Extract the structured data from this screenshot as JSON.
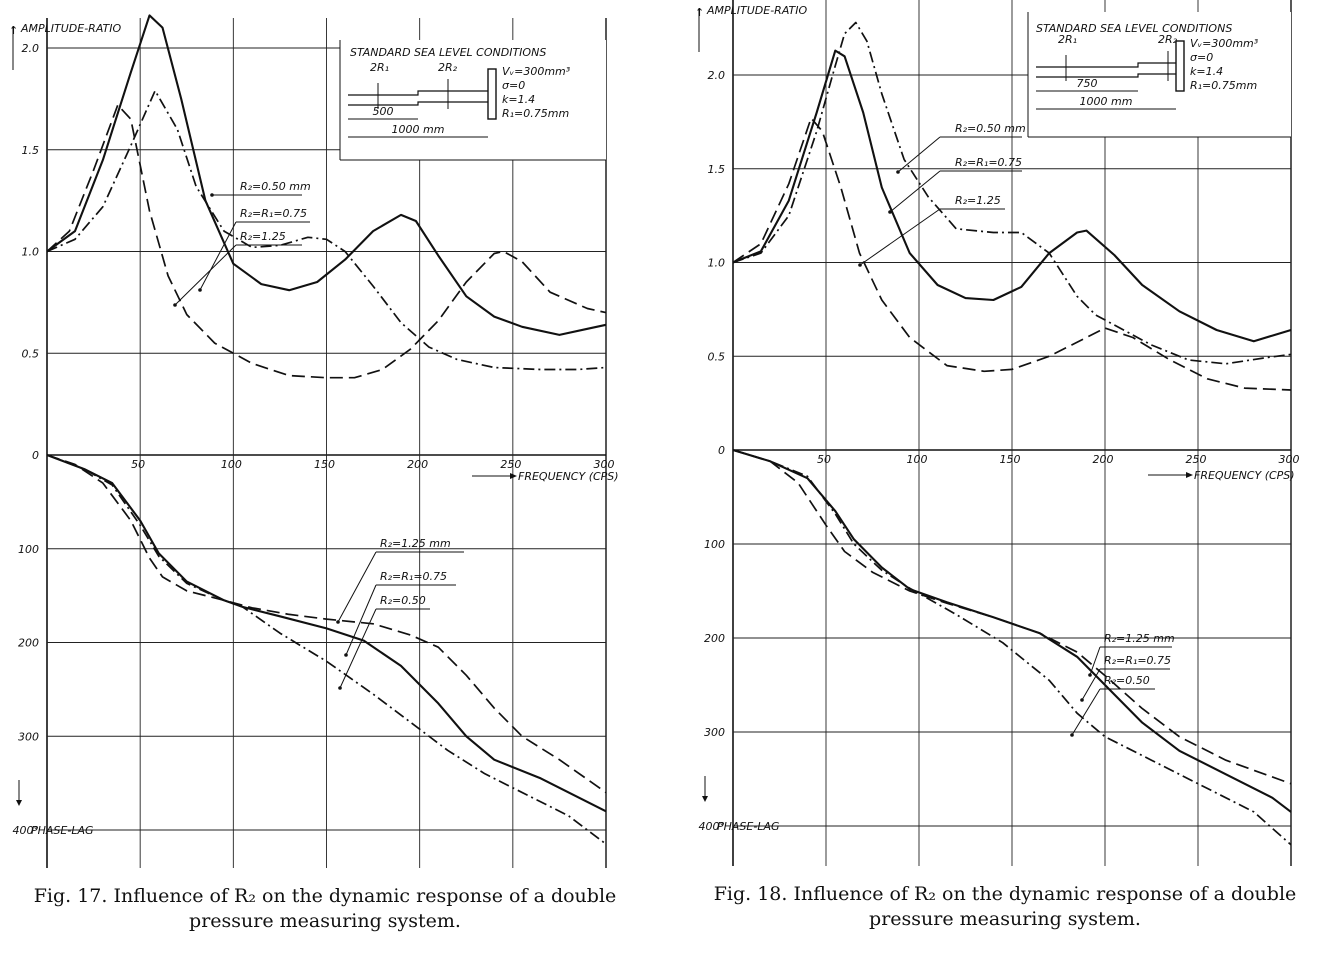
{
  "figures": [
    {
      "caption_line1": "Fig. 17. Influence of R₂ on the dynamic response of a double",
      "caption_line2": "pressure measuring system.",
      "conditions_title": "STANDARD SEA LEVEL CONDITIONS",
      "schematic": {
        "r1_label": "2R₁",
        "r2_label": "2R₂",
        "len1_label": "500",
        "len_total_label": "1000 mm",
        "volume": "Vᵥ=300mm³",
        "sigma": "σ=0",
        "k": "k=1.4",
        "r1": "R₁=0.75mm"
      },
      "amp_annotations": [
        "R₂=0.50 mm",
        "R₂=R₁=0.75",
        "R₂=1.25"
      ],
      "phase_annotations": [
        "R₂=1.25 mm",
        "R₂=R₁=0.75",
        "R₂=0.50"
      ]
    },
    {
      "caption_line1": "Fig. 18. Influence of R₂ on the dynamic response of a double",
      "caption_line2": "pressure measuring system.",
      "conditions_title": "STANDARD SEA LEVEL CONDITIONS",
      "schematic": {
        "r1_label": "2R₁",
        "r2_label": "2R₂",
        "len1_label": "750",
        "len_total_label": "1000 mm",
        "volume": "Vᵥ=300mm³",
        "sigma": "σ=0",
        "k": "k=1.4",
        "r1": "R₁=0.75mm"
      },
      "amp_annotations": [
        "R₂=0.50 mm",
        "R₂=R₁=0.75",
        "R₂=1.25"
      ],
      "phase_annotations": [
        "R₂=1.25 mm",
        "R₂=R₁=0.75",
        "R₂=0.50"
      ]
    }
  ],
  "chart_data": [
    {
      "type": "line",
      "title": "Fig. 17",
      "xlabel": "FREQUENCY (CPS)",
      "ylabel_top": "AMPLITUDE-RATIO",
      "ylabel_bottom": "PHASE-LAG",
      "xlim": [
        0,
        300
      ],
      "x_ticks": [
        "50",
        "100",
        "150",
        "200",
        "250",
        "300"
      ],
      "amp_ylim": [
        0,
        2.0
      ],
      "amp_ticks": [
        "0",
        "0.5",
        "1.0",
        "1.5",
        "2.0"
      ],
      "phase_ylim": [
        0,
        400
      ],
      "phase_ticks": [
        "0",
        "100",
        "200",
        "300",
        "400°"
      ],
      "amplitude_series": [
        {
          "name": "R₂=0.50 mm",
          "style": "dash-dot",
          "points": [
            [
              0,
              1.0
            ],
            [
              15,
              1.06
            ],
            [
              30,
              1.22
            ],
            [
              45,
              1.52
            ],
            [
              58,
              1.79
            ],
            [
              70,
              1.6
            ],
            [
              80,
              1.32
            ],
            [
              95,
              1.1
            ],
            [
              110,
              1.02
            ],
            [
              125,
              1.03
            ],
            [
              140,
              1.07
            ],
            [
              150,
              1.06
            ],
            [
              160,
              1.0
            ],
            [
              175,
              0.83
            ],
            [
              190,
              0.65
            ],
            [
              205,
              0.53
            ],
            [
              220,
              0.47
            ],
            [
              240,
              0.43
            ],
            [
              265,
              0.42
            ],
            [
              285,
              0.42
            ],
            [
              300,
              0.43
            ]
          ]
        },
        {
          "name": "R₂=R₁=0.75",
          "style": "solid",
          "points": [
            [
              0,
              1.0
            ],
            [
              15,
              1.1
            ],
            [
              30,
              1.45
            ],
            [
              45,
              1.88
            ],
            [
              55,
              2.16
            ],
            [
              62,
              2.1
            ],
            [
              72,
              1.75
            ],
            [
              85,
              1.25
            ],
            [
              100,
              0.94
            ],
            [
              115,
              0.84
            ],
            [
              130,
              0.81
            ],
            [
              145,
              0.85
            ],
            [
              160,
              0.96
            ],
            [
              175,
              1.1
            ],
            [
              190,
              1.18
            ],
            [
              198,
              1.15
            ],
            [
              210,
              0.98
            ],
            [
              225,
              0.78
            ],
            [
              240,
              0.68
            ],
            [
              255,
              0.63
            ],
            [
              275,
              0.59
            ],
            [
              290,
              0.62
            ],
            [
              300,
              0.64
            ]
          ]
        },
        {
          "name": "R₂=1.25",
          "style": "dashed",
          "points": [
            [
              0,
              1.0
            ],
            [
              12,
              1.1
            ],
            [
              25,
              1.4
            ],
            [
              38,
              1.72
            ],
            [
              45,
              1.65
            ],
            [
              55,
              1.2
            ],
            [
              65,
              0.88
            ],
            [
              75,
              0.69
            ],
            [
              90,
              0.55
            ],
            [
              110,
              0.45
            ],
            [
              130,
              0.39
            ],
            [
              150,
              0.38
            ],
            [
              165,
              0.38
            ],
            [
              180,
              0.42
            ],
            [
              195,
              0.52
            ],
            [
              210,
              0.66
            ],
            [
              225,
              0.85
            ],
            [
              240,
              0.99
            ],
            [
              245,
              1.0
            ],
            [
              255,
              0.95
            ],
            [
              270,
              0.8
            ],
            [
              290,
              0.72
            ],
            [
              300,
              0.7
            ]
          ]
        }
      ],
      "phase_series": [
        {
          "name": "R₂=1.25 mm",
          "style": "dashed",
          "points": [
            [
              0,
              0
            ],
            [
              15,
              10
            ],
            [
              30,
              30
            ],
            [
              45,
              70
            ],
            [
              55,
              110
            ],
            [
              62,
              130
            ],
            [
              75,
              145
            ],
            [
              95,
              155
            ],
            [
              110,
              163
            ],
            [
              130,
              170
            ],
            [
              150,
              175
            ],
            [
              175,
              180
            ],
            [
              195,
              192
            ],
            [
              210,
              205
            ],
            [
              225,
              235
            ],
            [
              240,
              270
            ],
            [
              255,
              300
            ],
            [
              275,
              325
            ],
            [
              300,
              360
            ]
          ]
        },
        {
          "name": "R₂=R₁=0.75",
          "style": "solid",
          "points": [
            [
              0,
              0
            ],
            [
              20,
              15
            ],
            [
              35,
              30
            ],
            [
              50,
              70
            ],
            [
              60,
              105
            ],
            [
              75,
              135
            ],
            [
              95,
              155
            ],
            [
              105,
              162
            ],
            [
              125,
              172
            ],
            [
              150,
              185
            ],
            [
              170,
              198
            ],
            [
              190,
              225
            ],
            [
              210,
              265
            ],
            [
              225,
              300
            ],
            [
              240,
              325
            ],
            [
              265,
              345
            ],
            [
              300,
              380
            ]
          ]
        },
        {
          "name": "R₂=0.50",
          "style": "dash-dot",
          "points": [
            [
              0,
              0
            ],
            [
              20,
              15
            ],
            [
              35,
              32
            ],
            [
              50,
              75
            ],
            [
              60,
              108
            ],
            [
              75,
              137
            ],
            [
              95,
              155
            ],
            [
              105,
              162
            ],
            [
              125,
              190
            ],
            [
              150,
              220
            ],
            [
              175,
              255
            ],
            [
              195,
              285
            ],
            [
              215,
              315
            ],
            [
              235,
              340
            ],
            [
              260,
              365
            ],
            [
              280,
              385
            ],
            [
              300,
              415
            ]
          ]
        }
      ]
    },
    {
      "type": "line",
      "title": "Fig. 18",
      "xlabel": "FREQUENCY (CPS)",
      "ylabel_top": "AMPLITUDE-RATIO",
      "ylabel_bottom": "PHASE-LAG",
      "xlim": [
        0,
        300
      ],
      "x_ticks": [
        "50",
        "100",
        "150",
        "200",
        "250",
        "300"
      ],
      "amp_ylim": [
        0,
        2.0
      ],
      "amp_ticks": [
        "0",
        "0.5",
        "1.0",
        "1.5",
        "2.0"
      ],
      "phase_ylim": [
        0,
        400
      ],
      "phase_ticks": [
        "0",
        "100",
        "200",
        "300",
        "400°"
      ],
      "amplitude_series": [
        {
          "name": "R₂=0.50 mm",
          "style": "dash-dot",
          "points": [
            [
              0,
              1.0
            ],
            [
              15,
              1.05
            ],
            [
              30,
              1.25
            ],
            [
              45,
              1.7
            ],
            [
              55,
              2.05
            ],
            [
              60,
              2.22
            ],
            [
              66,
              2.28
            ],
            [
              72,
              2.18
            ],
            [
              80,
              1.9
            ],
            [
              92,
              1.55
            ],
            [
              105,
              1.35
            ],
            [
              120,
              1.18
            ],
            [
              140,
              1.16
            ],
            [
              155,
              1.16
            ],
            [
              170,
              1.05
            ],
            [
              185,
              0.82
            ],
            [
              195,
              0.72
            ],
            [
              210,
              0.64
            ],
            [
              225,
              0.56
            ],
            [
              245,
              0.48
            ],
            [
              265,
              0.46
            ],
            [
              285,
              0.49
            ],
            [
              300,
              0.51
            ]
          ]
        },
        {
          "name": "R₂=R₁=0.75",
          "style": "solid",
          "points": [
            [
              0,
              1.0
            ],
            [
              15,
              1.06
            ],
            [
              30,
              1.33
            ],
            [
              45,
              1.8
            ],
            [
              55,
              2.13
            ],
            [
              60,
              2.1
            ],
            [
              70,
              1.8
            ],
            [
              80,
              1.4
            ],
            [
              95,
              1.05
            ],
            [
              110,
              0.88
            ],
            [
              125,
              0.81
            ],
            [
              140,
              0.8
            ],
            [
              155,
              0.87
            ],
            [
              170,
              1.05
            ],
            [
              185,
              1.16
            ],
            [
              190,
              1.17
            ],
            [
              205,
              1.04
            ],
            [
              220,
              0.88
            ],
            [
              240,
              0.74
            ],
            [
              260,
              0.64
            ],
            [
              280,
              0.58
            ],
            [
              290,
              0.61
            ],
            [
              300,
              0.64
            ]
          ]
        },
        {
          "name": "R₂=1.25",
          "style": "dashed",
          "points": [
            [
              0,
              1.0
            ],
            [
              15,
              1.1
            ],
            [
              30,
              1.42
            ],
            [
              42,
              1.77
            ],
            [
              48,
              1.7
            ],
            [
              58,
              1.4
            ],
            [
              68,
              1.05
            ],
            [
              80,
              0.8
            ],
            [
              95,
              0.6
            ],
            [
              115,
              0.45
            ],
            [
              135,
              0.42
            ],
            [
              150,
              0.43
            ],
            [
              170,
              0.5
            ],
            [
              190,
              0.6
            ],
            [
              200,
              0.65
            ],
            [
              215,
              0.6
            ],
            [
              235,
              0.48
            ],
            [
              255,
              0.38
            ],
            [
              275,
              0.33
            ],
            [
              300,
              0.32
            ]
          ]
        }
      ],
      "phase_series": [
        {
          "name": "R₂=1.25 mm",
          "style": "dashed",
          "points": [
            [
              0,
              0
            ],
            [
              20,
              12
            ],
            [
              35,
              35
            ],
            [
              50,
              80
            ],
            [
              60,
              108
            ],
            [
              75,
              130
            ],
            [
              95,
              150
            ],
            [
              115,
              163
            ],
            [
              140,
              178
            ],
            [
              165,
              195
            ],
            [
              185,
              215
            ],
            [
              200,
              240
            ],
            [
              220,
              275
            ],
            [
              240,
              305
            ],
            [
              265,
              330
            ],
            [
              300,
              355
            ]
          ]
        },
        {
          "name": "R₂=R₁=0.75",
          "style": "solid",
          "points": [
            [
              0,
              0
            ],
            [
              20,
              12
            ],
            [
              40,
              30
            ],
            [
              55,
              65
            ],
            [
              65,
              95
            ],
            [
              80,
              125
            ],
            [
              95,
              148
            ],
            [
              115,
              162
            ],
            [
              140,
              178
            ],
            [
              165,
              195
            ],
            [
              185,
              220
            ],
            [
              200,
              250
            ],
            [
              220,
              290
            ],
            [
              240,
              320
            ],
            [
              265,
              345
            ],
            [
              290,
              370
            ],
            [
              300,
              385
            ]
          ]
        },
        {
          "name": "R₂=0.50",
          "style": "dash-dot",
          "points": [
            [
              0,
              0
            ],
            [
              20,
              12
            ],
            [
              40,
              28
            ],
            [
              55,
              68
            ],
            [
              65,
              100
            ],
            [
              80,
              128
            ],
            [
              95,
              147
            ],
            [
              120,
              175
            ],
            [
              145,
              205
            ],
            [
              170,
              245
            ],
            [
              185,
              280
            ],
            [
              200,
              305
            ],
            [
              225,
              330
            ],
            [
              255,
              360
            ],
            [
              280,
              385
            ],
            [
              300,
              420
            ]
          ]
        }
      ]
    }
  ]
}
